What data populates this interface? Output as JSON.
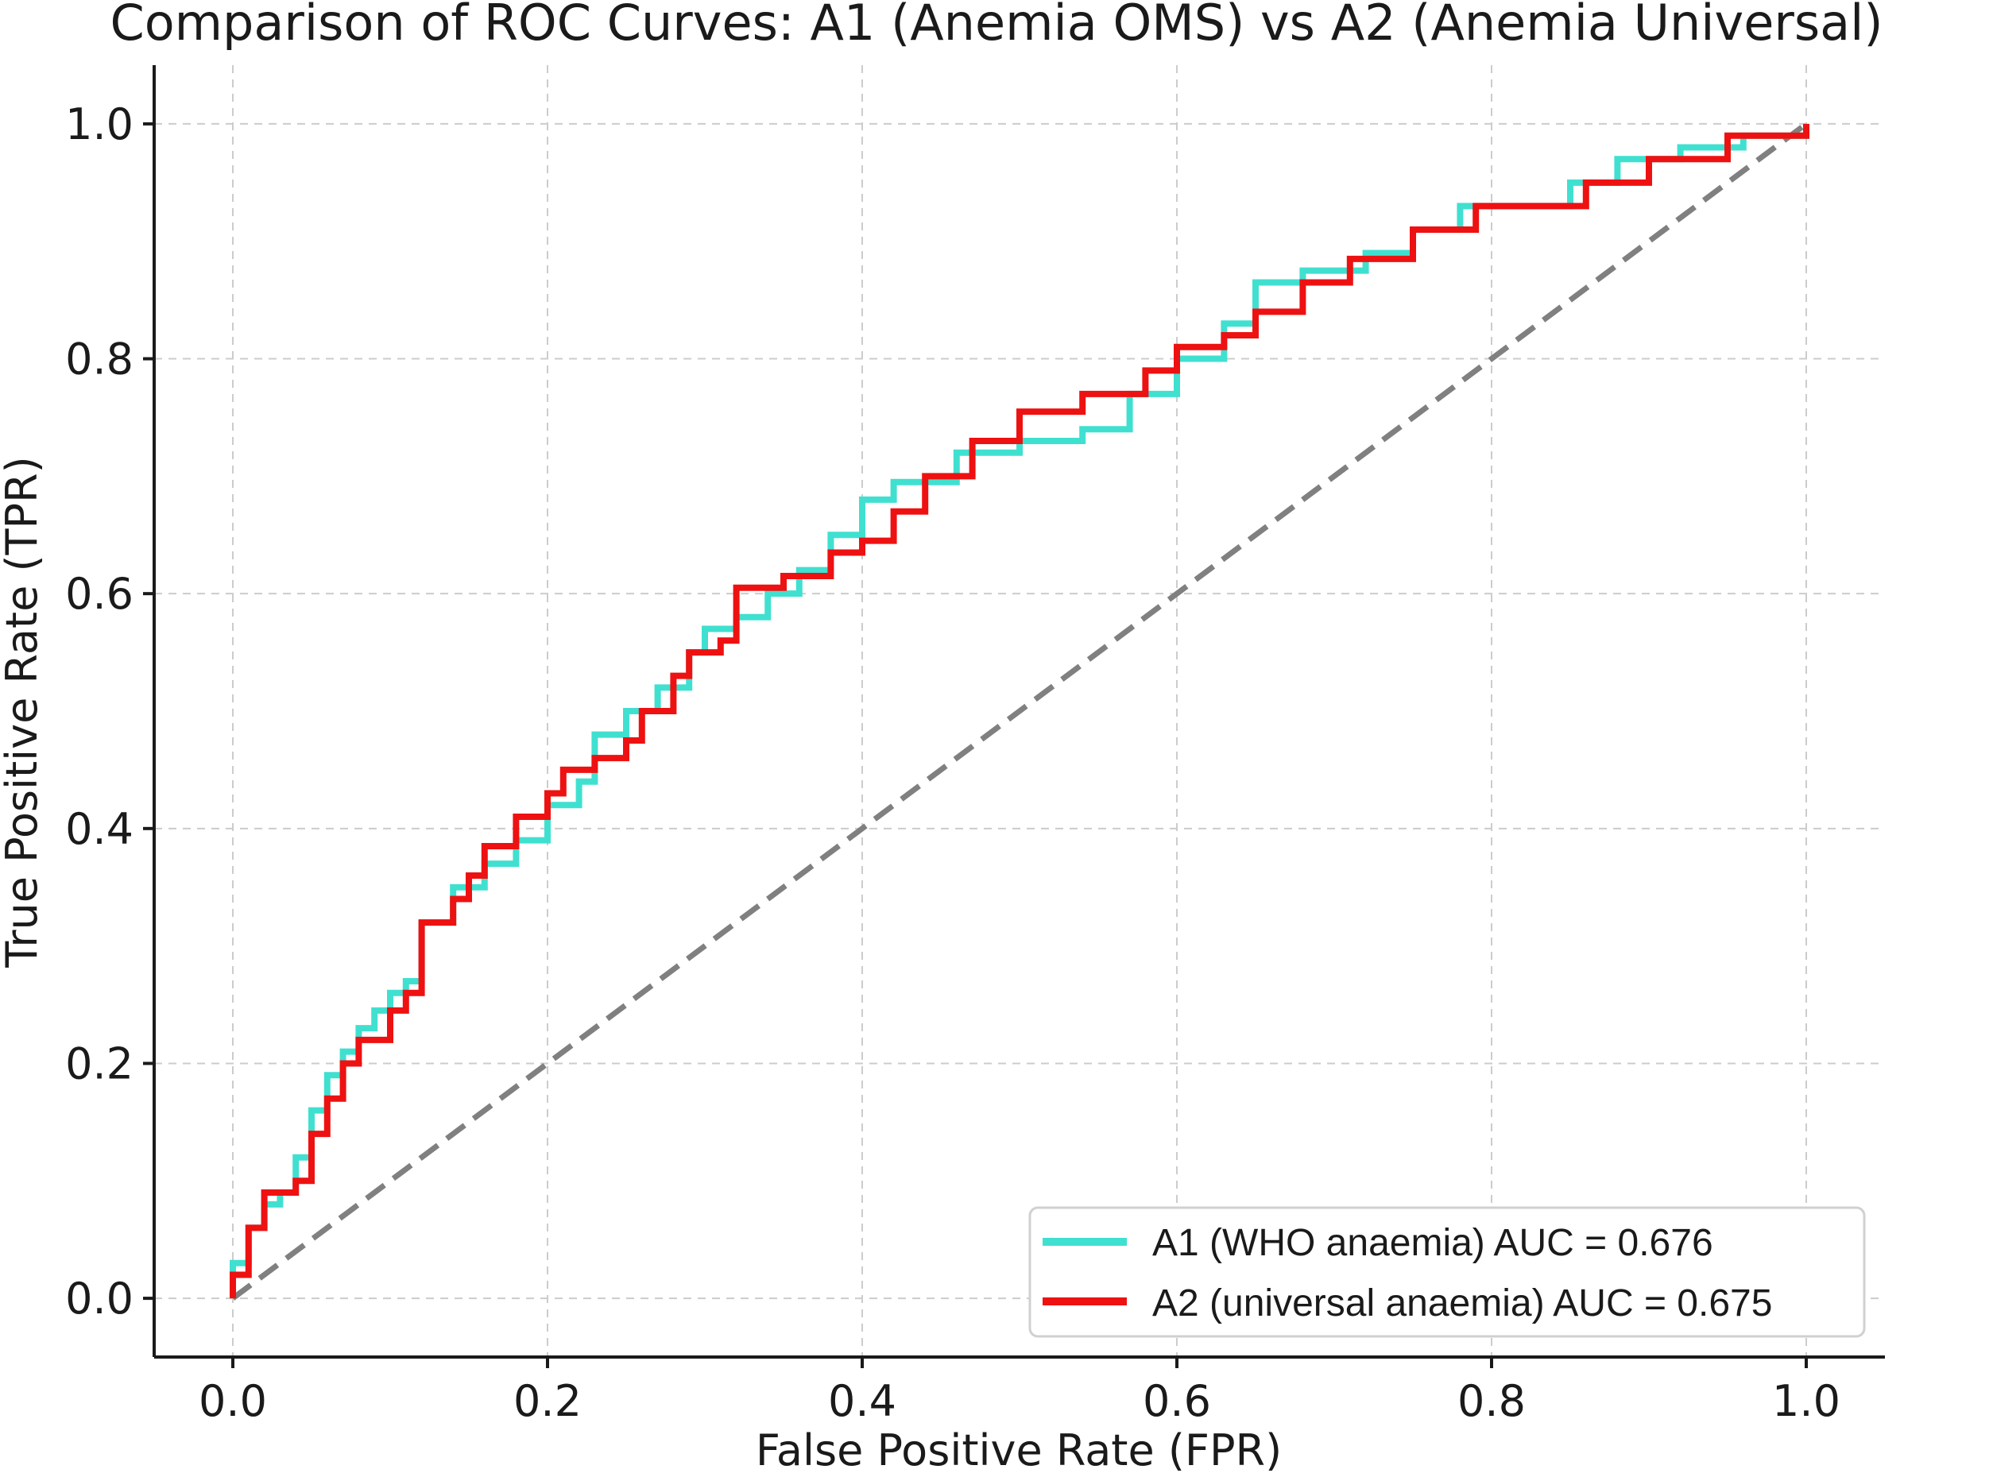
{
  "chart_data": {
    "type": "line",
    "title": "Comparison of ROC Curves: A1 (Anemia OMS) vs A2 (Anemia Universal)",
    "xlabel": "False Positive Rate (FPR)",
    "ylabel": "True Positive Rate (TPR)",
    "xlim": [
      -0.05,
      1.05
    ],
    "ylim": [
      -0.05,
      1.05
    ],
    "xticks": [
      0.0,
      0.2,
      0.4,
      0.6,
      0.8,
      1.0
    ],
    "yticks": [
      0.0,
      0.2,
      0.4,
      0.6,
      0.8,
      1.0
    ],
    "tick_labels_x": [
      "0.0",
      "0.2",
      "0.4",
      "0.6",
      "0.8",
      "1.0"
    ],
    "tick_labels_y": [
      "0.0",
      "0.2",
      "0.4",
      "0.6",
      "0.8",
      "1.0"
    ],
    "grid": true,
    "legend_position": "bottom-right",
    "reference_line": {
      "x": [
        0,
        1
      ],
      "y": [
        0,
        1
      ],
      "color": "#808080",
      "style": "dashed"
    },
    "series": [
      {
        "name": "A1 (WHO anaemia) AUC = 0.676",
        "color": "#40E0D0",
        "x": [
          0.0,
          0.0,
          0.01,
          0.02,
          0.03,
          0.04,
          0.05,
          0.06,
          0.07,
          0.08,
          0.09,
          0.1,
          0.11,
          0.12,
          0.12,
          0.14,
          0.16,
          0.18,
          0.2,
          0.22,
          0.23,
          0.25,
          0.27,
          0.29,
          0.3,
          0.32,
          0.34,
          0.36,
          0.38,
          0.4,
          0.42,
          0.46,
          0.5,
          0.54,
          0.57,
          0.6,
          0.63,
          0.65,
          0.68,
          0.72,
          0.75,
          0.78,
          0.82,
          0.85,
          0.88,
          0.92,
          0.96,
          1.0
        ],
        "y": [
          0.0,
          0.03,
          0.06,
          0.08,
          0.09,
          0.12,
          0.16,
          0.19,
          0.21,
          0.23,
          0.245,
          0.26,
          0.27,
          0.28,
          0.32,
          0.35,
          0.37,
          0.39,
          0.42,
          0.44,
          0.48,
          0.5,
          0.52,
          0.55,
          0.57,
          0.58,
          0.6,
          0.62,
          0.65,
          0.68,
          0.695,
          0.72,
          0.73,
          0.74,
          0.77,
          0.8,
          0.83,
          0.865,
          0.875,
          0.89,
          0.91,
          0.93,
          0.93,
          0.95,
          0.97,
          0.98,
          0.99,
          1.0
        ]
      },
      {
        "name": "A2 (universal anaemia) AUC = 0.675",
        "color": "#EE1111",
        "x": [
          0.0,
          0.0,
          0.01,
          0.02,
          0.02,
          0.04,
          0.05,
          0.06,
          0.07,
          0.08,
          0.1,
          0.11,
          0.12,
          0.12,
          0.14,
          0.15,
          0.16,
          0.18,
          0.2,
          0.21,
          0.23,
          0.25,
          0.26,
          0.28,
          0.29,
          0.31,
          0.32,
          0.35,
          0.38,
          0.4,
          0.42,
          0.44,
          0.47,
          0.5,
          0.54,
          0.58,
          0.6,
          0.63,
          0.65,
          0.68,
          0.71,
          0.75,
          0.79,
          0.83,
          0.86,
          0.9,
          0.95,
          1.0
        ],
        "y": [
          0.0,
          0.02,
          0.06,
          0.07,
          0.09,
          0.1,
          0.14,
          0.17,
          0.2,
          0.22,
          0.245,
          0.26,
          0.27,
          0.32,
          0.34,
          0.36,
          0.385,
          0.41,
          0.43,
          0.45,
          0.46,
          0.475,
          0.5,
          0.53,
          0.55,
          0.56,
          0.605,
          0.615,
          0.635,
          0.645,
          0.67,
          0.7,
          0.73,
          0.755,
          0.77,
          0.79,
          0.81,
          0.82,
          0.84,
          0.865,
          0.885,
          0.91,
          0.93,
          0.93,
          0.95,
          0.97,
          0.99,
          1.0
        ]
      }
    ]
  }
}
